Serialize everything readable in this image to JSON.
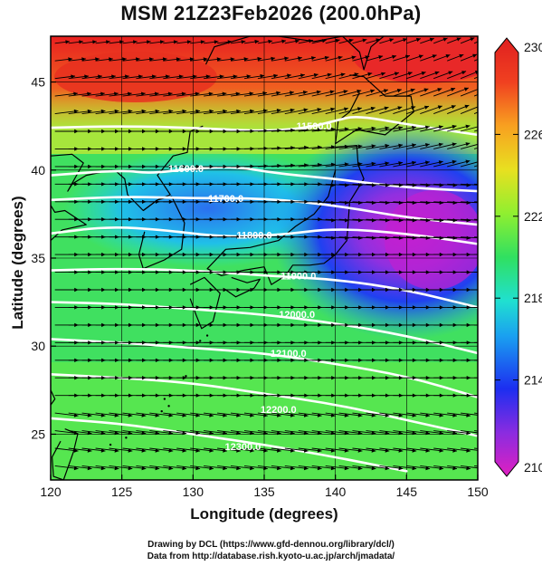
{
  "title": "MSM 21Z23Feb2026 (200.0hPa)",
  "credits": [
    "Drawing by DCL (https://www.gfd-dennou.org/library/dcl/)",
    "Data from http://database.rish.kyoto-u.ac.jp/arch/jmadata/"
  ],
  "chart_data": {
    "type": "heatmap",
    "title": "MSM 21Z23Feb2026 (200.0hPa)",
    "xlabel": "Longitude (degrees)",
    "ylabel": "Latitude  (degrees)",
    "xlim": [
      120,
      150
    ],
    "ylim": [
      22.4,
      47.6
    ],
    "x_ticks": [
      120,
      125,
      130,
      135,
      140,
      145,
      150
    ],
    "y_ticks": [
      25,
      30,
      35,
      40,
      45
    ],
    "grid": true,
    "shaded_field": {
      "description": "temperature shading",
      "colorbar_range": [
        210,
        230
      ],
      "colorbar_ticks": [
        210,
        214,
        218,
        222,
        226,
        230
      ],
      "colorbar_position": "right",
      "colors": [
        "#e020c0",
        "#8a2ce0",
        "#1c2ef0",
        "#1aa0f0",
        "#20e0d0",
        "#30e060",
        "#90ef30",
        "#e8e020",
        "#f8a020",
        "#f04020",
        "#e02020"
      ],
      "regions": [
        {
          "name": "warm-north",
          "value_range": [
            226,
            230
          ]
        },
        {
          "name": "cold-core-east-of-japan",
          "value_range": [
            210,
            216
          ]
        },
        {
          "name": "subtropical-green",
          "value_range": [
            219,
            224
          ]
        }
      ]
    },
    "contours": {
      "field": "geopotential height",
      "color": "#ffffff",
      "labeled_levels": [
        {
          "label": "11500.0",
          "lon": 138.5,
          "lat": 42.5
        },
        {
          "label": "11600.0",
          "lon": 129.5,
          "lat": 40.1
        },
        {
          "label": "11700.0",
          "lon": 132.3,
          "lat": 38.4
        },
        {
          "label": "11800.0",
          "lon": 134.3,
          "lat": 36.3
        },
        {
          "label": "11900.0",
          "lon": 137.4,
          "lat": 34.0
        },
        {
          "label": "12000.0",
          "lon": 137.3,
          "lat": 31.8
        },
        {
          "label": "12100.0",
          "lon": 136.7,
          "lat": 29.6
        },
        {
          "label": "12200.0",
          "lon": 136.0,
          "lat": 26.4
        },
        {
          "label": "12300.0",
          "lon": 133.5,
          "lat": 24.3
        }
      ],
      "lines": [
        [
          [
            120,
            42.4
          ],
          [
            125,
            42.5
          ],
          [
            130,
            42.4
          ],
          [
            135,
            42.2
          ],
          [
            138,
            42.4
          ],
          [
            140,
            42.8
          ],
          [
            141.5,
            43.1
          ],
          [
            145,
            42.6
          ],
          [
            150,
            42.0
          ]
        ],
        [
          [
            120,
            39.7
          ],
          [
            125,
            40.0
          ],
          [
            127,
            39.8
          ],
          [
            130,
            40.1
          ],
          [
            133,
            40.2
          ],
          [
            136,
            39.8
          ],
          [
            140,
            39.5
          ],
          [
            145,
            39.0
          ],
          [
            150,
            38.8
          ]
        ],
        [
          [
            120,
            38.3
          ],
          [
            125,
            38.5
          ],
          [
            130,
            38.4
          ],
          [
            135,
            38.4
          ],
          [
            140,
            38.0
          ],
          [
            145,
            37.3
          ],
          [
            150,
            36.9
          ]
        ],
        [
          [
            120,
            36.4
          ],
          [
            124,
            36.8
          ],
          [
            128,
            36.6
          ],
          [
            132,
            36.2
          ],
          [
            136,
            36.3
          ],
          [
            140,
            36.7
          ],
          [
            145,
            36.4
          ],
          [
            150,
            35.8
          ]
        ],
        [
          [
            120,
            34.3
          ],
          [
            125,
            34.4
          ],
          [
            130,
            34.3
          ],
          [
            135,
            34.0
          ],
          [
            140,
            33.8
          ],
          [
            145,
            33.2
          ],
          [
            150,
            32.2
          ]
        ],
        [
          [
            120,
            32.5
          ],
          [
            125,
            32.4
          ],
          [
            130,
            32.1
          ],
          [
            135,
            31.8
          ],
          [
            140,
            31.3
          ],
          [
            145,
            30.6
          ],
          [
            150,
            29.6
          ]
        ],
        [
          [
            120,
            30.4
          ],
          [
            125,
            30.2
          ],
          [
            130,
            29.9
          ],
          [
            135,
            29.6
          ],
          [
            140,
            29.0
          ],
          [
            145,
            28.3
          ],
          [
            150,
            27.1
          ]
        ],
        [
          [
            120,
            28.4
          ],
          [
            125,
            28.2
          ],
          [
            130,
            27.9
          ],
          [
            135,
            27.3
          ],
          [
            140,
            26.7
          ],
          [
            145,
            25.8
          ],
          [
            150,
            24.9
          ]
        ],
        [
          [
            120,
            25.9
          ],
          [
            125,
            25.6
          ],
          [
            130,
            25.0
          ],
          [
            135,
            24.4
          ],
          [
            140,
            23.7
          ],
          [
            145,
            22.9
          ]
        ]
      ]
    },
    "vectors": {
      "field": "wind",
      "color": "#000000",
      "direction": "predominantly west-to-east, southwest over the northeast corner",
      "spacing_degrees": [
        0.9,
        1.0
      ]
    }
  }
}
